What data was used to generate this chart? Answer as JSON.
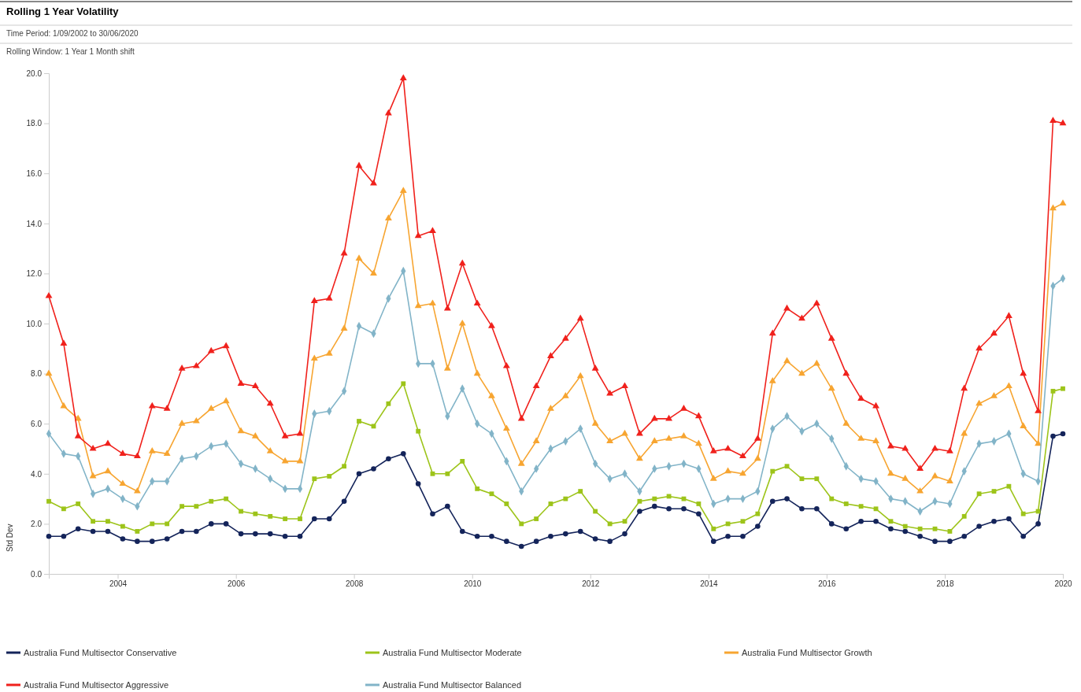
{
  "chart_data": {
    "type": "line",
    "title": "Rolling 1 Year Volatility",
    "subtitle": "Time Period: 1/09/2002 to 30/06/2020",
    "annotations": [
      "Rolling Window: 1 Year 1 Month shift"
    ],
    "ylabel": "Std Dev",
    "x": [
      "2002-11",
      "2003-02",
      "2003-05",
      "2003-08",
      "2003-11",
      "2004-02",
      "2004-05",
      "2004-08",
      "2004-11",
      "2005-02",
      "2005-05",
      "2005-08",
      "2005-11",
      "2006-02",
      "2006-05",
      "2006-08",
      "2006-11",
      "2007-02",
      "2007-05",
      "2007-08",
      "2007-11",
      "2008-02",
      "2008-05",
      "2008-08",
      "2008-11",
      "2009-02",
      "2009-05",
      "2009-08",
      "2009-11",
      "2010-02",
      "2010-05",
      "2010-08",
      "2010-11",
      "2011-02",
      "2011-05",
      "2011-08",
      "2011-11",
      "2012-02",
      "2012-05",
      "2012-08",
      "2012-11",
      "2013-02",
      "2013-05",
      "2013-08",
      "2013-11",
      "2014-02",
      "2014-05",
      "2014-08",
      "2014-11",
      "2015-02",
      "2015-05",
      "2015-08",
      "2015-11",
      "2016-02",
      "2016-05",
      "2016-08",
      "2016-11",
      "2017-02",
      "2017-05",
      "2017-08",
      "2017-11",
      "2018-02",
      "2018-05",
      "2018-08",
      "2018-11",
      "2019-02",
      "2019-05",
      "2019-08",
      "2019-11",
      "2020-01"
    ],
    "series": [
      {
        "name": "Australia Fund Multisector Conservative",
        "color": "#14245a",
        "marker": "circle",
        "values": [
          1.5,
          1.5,
          1.8,
          1.7,
          1.7,
          1.4,
          1.3,
          1.3,
          1.4,
          1.7,
          1.7,
          2.0,
          2.0,
          1.6,
          1.6,
          1.6,
          1.5,
          1.5,
          2.2,
          2.2,
          2.9,
          4.0,
          4.2,
          4.6,
          4.8,
          3.6,
          2.4,
          2.7,
          1.7,
          1.5,
          1.5,
          1.3,
          1.1,
          1.3,
          1.5,
          1.6,
          1.7,
          1.4,
          1.3,
          1.6,
          2.5,
          2.7,
          2.6,
          2.6,
          2.4,
          1.3,
          1.5,
          1.5,
          1.9,
          2.9,
          3.0,
          2.6,
          2.6,
          2.0,
          1.8,
          2.1,
          2.1,
          1.8,
          1.7,
          1.5,
          1.3,
          1.3,
          1.5,
          1.9,
          2.1,
          2.2,
          1.5,
          2.0,
          5.5,
          5.6
        ]
      },
      {
        "name": "Australia Fund Multisector Moderate",
        "color": "#9dc41a",
        "marker": "square",
        "values": [
          2.9,
          2.6,
          2.8,
          2.1,
          2.1,
          1.9,
          1.7,
          2.0,
          2.0,
          2.7,
          2.7,
          2.9,
          3.0,
          2.5,
          2.4,
          2.3,
          2.2,
          2.2,
          3.8,
          3.9,
          4.3,
          6.1,
          5.9,
          6.8,
          7.6,
          5.7,
          4.0,
          4.0,
          4.5,
          3.4,
          3.2,
          2.8,
          2.0,
          2.2,
          2.8,
          3.0,
          3.3,
          2.5,
          2.0,
          2.1,
          2.9,
          3.0,
          3.1,
          3.0,
          2.8,
          1.8,
          2.0,
          2.1,
          2.4,
          4.1,
          4.3,
          3.8,
          3.8,
          3.0,
          2.8,
          2.7,
          2.6,
          2.1,
          1.9,
          1.8,
          1.8,
          1.7,
          2.3,
          3.2,
          3.3,
          3.5,
          2.4,
          2.5,
          7.3,
          7.4
        ]
      },
      {
        "name": "Australia Fund Multisector Growth",
        "color": "#f7a531",
        "marker": "triangle",
        "values": [
          8.0,
          6.7,
          6.2,
          3.9,
          4.1,
          3.6,
          3.3,
          4.9,
          4.8,
          6.0,
          6.1,
          6.6,
          6.9,
          5.7,
          5.5,
          4.9,
          4.5,
          4.5,
          8.6,
          8.8,
          9.8,
          12.6,
          12.0,
          14.2,
          15.3,
          10.7,
          10.8,
          8.2,
          10.0,
          8.0,
          7.1,
          5.8,
          4.4,
          5.3,
          6.6,
          7.1,
          7.9,
          6.0,
          5.3,
          5.6,
          4.6,
          5.3,
          5.4,
          5.5,
          5.2,
          3.8,
          4.1,
          4.0,
          4.6,
          7.7,
          8.5,
          8.0,
          8.4,
          7.4,
          6.0,
          5.4,
          5.3,
          4.0,
          3.8,
          3.3,
          3.9,
          3.7,
          5.6,
          6.8,
          7.1,
          7.5,
          5.9,
          5.2,
          14.6,
          14.8
        ]
      },
      {
        "name": "Australia Fund Multisector Aggressive",
        "color": "#f0211c",
        "marker": "triangle",
        "values": [
          11.1,
          9.2,
          5.5,
          5.0,
          5.2,
          4.8,
          4.7,
          6.7,
          6.6,
          8.2,
          8.3,
          8.9,
          9.1,
          7.6,
          7.5,
          6.8,
          5.5,
          5.6,
          10.9,
          11.0,
          12.8,
          16.3,
          15.6,
          18.4,
          19.8,
          13.5,
          13.7,
          10.6,
          12.4,
          10.8,
          9.9,
          8.3,
          6.2,
          7.5,
          8.7,
          9.4,
          10.2,
          8.2,
          7.2,
          7.5,
          5.6,
          6.2,
          6.2,
          6.6,
          6.3,
          4.9,
          5.0,
          4.7,
          5.4,
          9.6,
          10.6,
          10.2,
          10.8,
          9.4,
          8.0,
          7.0,
          6.7,
          5.1,
          5.0,
          4.2,
          5.0,
          4.9,
          7.4,
          9.0,
          9.6,
          10.3,
          8.0,
          6.5,
          18.1,
          18.0
        ]
      },
      {
        "name": "Australia Fund Multisector Balanced",
        "color": "#82b4c8",
        "marker": "diamond",
        "values": [
          5.6,
          4.8,
          4.7,
          3.2,
          3.4,
          3.0,
          2.7,
          3.7,
          3.7,
          4.6,
          4.7,
          5.1,
          5.2,
          4.4,
          4.2,
          3.8,
          3.4,
          3.4,
          6.4,
          6.5,
          7.3,
          9.9,
          9.6,
          11.0,
          12.1,
          8.4,
          8.4,
          6.3,
          7.4,
          6.0,
          5.6,
          4.5,
          3.3,
          4.2,
          5.0,
          5.3,
          5.8,
          4.4,
          3.8,
          4.0,
          3.3,
          4.2,
          4.3,
          4.4,
          4.2,
          2.8,
          3.0,
          3.0,
          3.3,
          5.8,
          6.3,
          5.7,
          6.0,
          5.4,
          4.3,
          3.8,
          3.7,
          3.0,
          2.9,
          2.5,
          2.9,
          2.8,
          4.1,
          5.2,
          5.3,
          5.6,
          4.0,
          3.7,
          11.5,
          11.8
        ]
      }
    ],
    "xlim": [
      "2002-11",
      "2020-01"
    ],
    "xticks": [
      {
        "value": "2004-01",
        "label": "2004"
      },
      {
        "value": "2006-01",
        "label": "2006"
      },
      {
        "value": "2008-01",
        "label": "2008"
      },
      {
        "value": "2010-01",
        "label": "2010"
      },
      {
        "value": "2012-01",
        "label": "2012"
      },
      {
        "value": "2014-01",
        "label": "2014"
      },
      {
        "value": "2016-01",
        "label": "2016"
      },
      {
        "value": "2018-01",
        "label": "2018"
      },
      {
        "value": "2020-01",
        "label": "2020"
      }
    ],
    "ylim": [
      0,
      20
    ],
    "yticks": [
      {
        "value": 0,
        "label": "0.0"
      },
      {
        "value": 2,
        "label": "2.0"
      },
      {
        "value": 4,
        "label": "4.0"
      },
      {
        "value": 6,
        "label": "6.0"
      },
      {
        "value": 8,
        "label": "8.0"
      },
      {
        "value": 10,
        "label": "10.0"
      },
      {
        "value": 12,
        "label": "12.0"
      },
      {
        "value": 14,
        "label": "14.0"
      },
      {
        "value": 16,
        "label": "16.0"
      },
      {
        "value": 18,
        "label": "18.0"
      },
      {
        "value": 20,
        "label": "20.0"
      }
    ],
    "legend": "bottom",
    "line_style": "solid"
  }
}
